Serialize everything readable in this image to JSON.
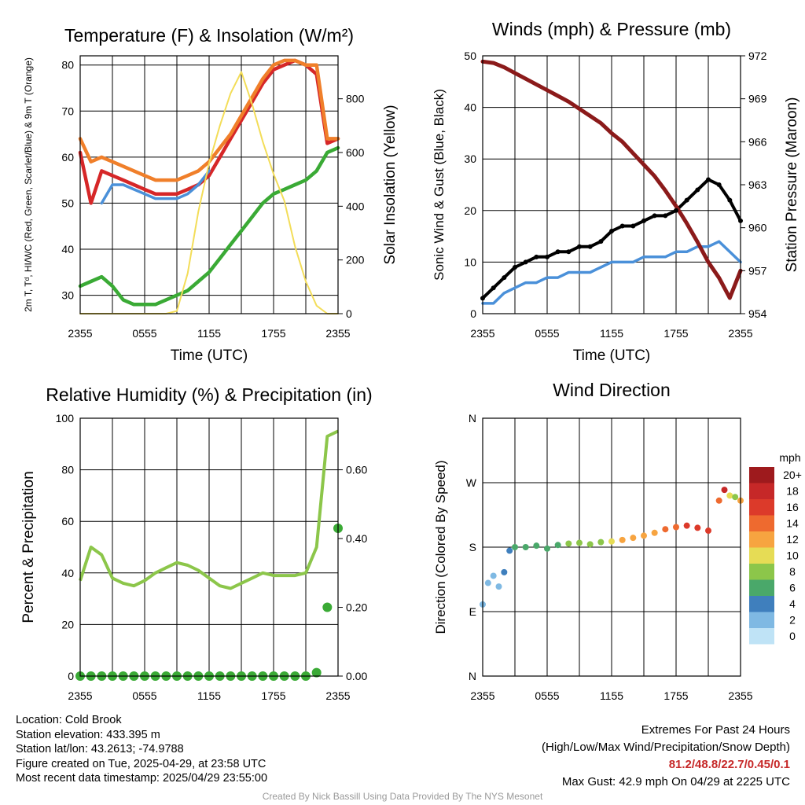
{
  "charts": {
    "temp": {
      "title": "Temperature (F) & Insolation (W/m²)",
      "ylabel_left": "2m T, Tᵈ, HI/WC (Red, Green, Scarlet/Blue) & 9m T (Orange)",
      "ylabel_right": "Solar Insolation (Yellow)",
      "xlabel": "Time (UTC)",
      "y_ticks": [
        "30",
        "40",
        "50",
        "60",
        "70",
        "80"
      ],
      "y2_ticks": [
        "0",
        "200",
        "400",
        "600",
        "800"
      ],
      "x_ticks": [
        "2355",
        "0555",
        "1155",
        "1755",
        "2355"
      ]
    },
    "wind": {
      "title": "Winds (mph) & Pressure (mb)",
      "ylabel_left": "Sonic Wind & Gust (Blue, Black)",
      "ylabel_right": "Station Pressure (Maroon)",
      "xlabel": "Time (UTC)",
      "y_ticks": [
        "0",
        "10",
        "20",
        "30",
        "40",
        "50"
      ],
      "y2_ticks": [
        "954",
        "957",
        "960",
        "963",
        "966",
        "969",
        "972"
      ],
      "x_ticks": [
        "2355",
        "0555",
        "1155",
        "1755",
        "2355"
      ]
    },
    "rh": {
      "title": "Relative Humidity (%) & Precipitation (in)",
      "ylabel_left": "Percent & Precipitation",
      "y_ticks": [
        "0",
        "20",
        "40",
        "60",
        "80",
        "100"
      ],
      "y2_ticks": [
        "0.00",
        "0.20",
        "0.40",
        "0.60"
      ],
      "x_ticks": [
        "2355",
        "0555",
        "1155",
        "1755",
        "2355"
      ]
    },
    "dir": {
      "title": "Wind Direction",
      "ylabel_left": "Direction (Colored By Speed)",
      "y_ticks": [
        "N",
        "E",
        "S",
        "W",
        "N"
      ],
      "x_ticks": [
        "2355",
        "0555",
        "1155",
        "1755",
        "2355"
      ],
      "legend_title": "mph",
      "legend_labels": [
        "20+",
        "18",
        "16",
        "14",
        "12",
        "10",
        "8",
        "6",
        "4",
        "2",
        "0"
      ],
      "legend_colors": [
        "#9e1a1d",
        "#c62828",
        "#dc3a2a",
        "#ee6a2f",
        "#f7a440",
        "#e6dc55",
        "#8cc64a",
        "#4aa86a",
        "#3f7fbd",
        "#7fb9e3",
        "#bfe3f6"
      ]
    }
  },
  "chart_data": [
    {
      "type": "line",
      "title": "Temperature (F) & Insolation (W/m²)",
      "xlabel": "Time (UTC)",
      "ylabel": "2m T, Tᵈ, HI/WC (Red, Green, Scarlet/Blue) & 9m T (Orange)",
      "y2label": "Solar Insolation (Yellow)",
      "x": [
        0,
        1,
        2,
        3,
        4,
        5,
        6,
        7,
        8,
        9,
        10,
        11,
        12,
        13,
        14,
        15,
        16,
        17,
        18,
        19,
        20,
        21,
        22,
        23,
        24
      ],
      "x_tick_labels": [
        "2355",
        "0555",
        "1155",
        "1755",
        "2355"
      ],
      "ylim": [
        26,
        82
      ],
      "y2lim": [
        0,
        960
      ],
      "series": [
        {
          "color": "#d62728",
          "axis": "left",
          "values": [
            61,
            50,
            57,
            56,
            55,
            54,
            53,
            52,
            52,
            52,
            53,
            54,
            56,
            60,
            64,
            68,
            72,
            76,
            79,
            80,
            81,
            80,
            78,
            63,
            64
          ]
        },
        {
          "color": "#4a90d9",
          "axis": "left",
          "values": [
            null,
            null,
            50,
            54,
            54,
            53,
            52,
            51,
            51,
            51,
            52,
            54,
            57,
            null,
            null,
            null,
            null,
            null,
            null,
            null,
            null,
            null,
            null,
            null,
            null
          ]
        },
        {
          "color": "#f07f2a",
          "axis": "left",
          "values": [
            64,
            59,
            60,
            59,
            58,
            57,
            56,
            55,
            55,
            55,
            56,
            57,
            59,
            62,
            65,
            69,
            73,
            77,
            80,
            81,
            81,
            80,
            80,
            64,
            64
          ]
        },
        {
          "color": "#3aaa35",
          "axis": "left",
          "values": [
            32,
            33,
            34,
            32,
            29,
            28,
            28,
            28,
            29,
            30,
            31,
            33,
            35,
            38,
            41,
            44,
            47,
            50,
            52,
            53,
            54,
            55,
            57,
            61,
            62
          ]
        },
        {
          "color": "#f3dd59",
          "axis": "right",
          "values": [
            0,
            0,
            0,
            0,
            0,
            0,
            0,
            0,
            0,
            10,
            150,
            380,
            560,
            700,
            820,
            900,
            780,
            640,
            520,
            420,
            250,
            120,
            30,
            0,
            0
          ]
        }
      ]
    },
    {
      "type": "line",
      "title": "Winds (mph) & Pressure (mb)",
      "xlabel": "Time (UTC)",
      "ylabel": "Sonic Wind & Gust (Blue, Black)",
      "y2label": "Station Pressure (Maroon)",
      "x": [
        0,
        1,
        2,
        3,
        4,
        5,
        6,
        7,
        8,
        9,
        10,
        11,
        12,
        13,
        14,
        15,
        16,
        17,
        18,
        19,
        20,
        21,
        22,
        23,
        24
      ],
      "x_tick_labels": [
        "2355",
        "0555",
        "1155",
        "1755",
        "2355"
      ],
      "ylim": [
        0,
        50
      ],
      "y2lim": [
        954,
        972
      ],
      "series": [
        {
          "color": "#4a90d9",
          "axis": "left",
          "values": [
            2,
            2,
            4,
            5,
            6,
            6,
            7,
            7,
            8,
            8,
            8,
            9,
            10,
            10,
            10,
            11,
            11,
            11,
            12,
            12,
            13,
            13,
            14,
            12,
            10
          ]
        },
        {
          "color": "#000000",
          "axis": "left",
          "values": [
            3,
            5,
            7,
            9,
            10,
            11,
            11,
            12,
            12,
            13,
            13,
            14,
            16,
            17,
            17,
            18,
            19,
            19,
            20,
            22,
            24,
            26,
            25,
            22,
            18
          ]
        },
        {
          "color": "#8b1a1a",
          "axis": "right",
          "values": [
            971.6,
            971.5,
            971.2,
            970.8,
            970.4,
            970.0,
            969.6,
            969.2,
            968.8,
            968.3,
            967.8,
            967.3,
            966.6,
            966.0,
            965.2,
            964.4,
            963.6,
            962.6,
            961.5,
            960.3,
            959.0,
            957.6,
            956.5,
            955.1,
            957.0
          ]
        }
      ]
    },
    {
      "type": "line",
      "title": "Relative Humidity (%) & Precipitation (in)",
      "ylabel": "Percent & Precipitation",
      "x": [
        0,
        1,
        2,
        3,
        4,
        5,
        6,
        7,
        8,
        9,
        10,
        11,
        12,
        13,
        14,
        15,
        16,
        17,
        18,
        19,
        20,
        21,
        22,
        23,
        24
      ],
      "x_tick_labels": [
        "2355",
        "0555",
        "1155",
        "1755",
        "2355"
      ],
      "ylim": [
        0,
        100
      ],
      "y2lim": [
        0,
        0.75
      ],
      "series": [
        {
          "color": "#8cc64a",
          "axis": "left",
          "values": [
            37,
            50,
            47,
            38,
            36,
            35,
            37,
            40,
            42,
            44,
            43,
            41,
            38,
            35,
            34,
            36,
            38,
            40,
            39,
            39,
            39,
            40,
            50,
            93,
            95
          ]
        },
        {
          "color": "#3aaa35",
          "axis": "right",
          "values": [
            0,
            0,
            0,
            0,
            0,
            0,
            0,
            0,
            0,
            0,
            0,
            0,
            0,
            0,
            0,
            0,
            0,
            0,
            0,
            0,
            0,
            0,
            0.01,
            0.2,
            0.43
          ]
        }
      ]
    },
    {
      "type": "scatter",
      "title": "Wind Direction",
      "ylabel": "Direction (Colored By Speed)",
      "x_tick_labels": [
        "2355",
        "0555",
        "1155",
        "1755",
        "2355"
      ],
      "y_tick_labels": [
        "N",
        "E",
        "S",
        "W",
        "N"
      ],
      "ylim": [
        0,
        360
      ],
      "points": [
        {
          "x": 0,
          "y": 100,
          "speed": 2
        },
        {
          "x": 0.5,
          "y": 130,
          "speed": 2
        },
        {
          "x": 1,
          "y": 140,
          "speed": 2
        },
        {
          "x": 1.5,
          "y": 125,
          "speed": 2
        },
        {
          "x": 2,
          "y": 145,
          "speed": 4
        },
        {
          "x": 2.5,
          "y": 175,
          "speed": 4
        },
        {
          "x": 3,
          "y": 180,
          "speed": 6
        },
        {
          "x": 4,
          "y": 180,
          "speed": 6
        },
        {
          "x": 5,
          "y": 182,
          "speed": 6
        },
        {
          "x": 6,
          "y": 178,
          "speed": 6
        },
        {
          "x": 7,
          "y": 183,
          "speed": 6
        },
        {
          "x": 8,
          "y": 185,
          "speed": 8
        },
        {
          "x": 9,
          "y": 186,
          "speed": 8
        },
        {
          "x": 10,
          "y": 184,
          "speed": 8
        },
        {
          "x": 11,
          "y": 187,
          "speed": 8
        },
        {
          "x": 12,
          "y": 188,
          "speed": 10
        },
        {
          "x": 13,
          "y": 190,
          "speed": 12
        },
        {
          "x": 14,
          "y": 193,
          "speed": 12
        },
        {
          "x": 15,
          "y": 196,
          "speed": 12
        },
        {
          "x": 16,
          "y": 200,
          "speed": 12
        },
        {
          "x": 17,
          "y": 205,
          "speed": 14
        },
        {
          "x": 18,
          "y": 208,
          "speed": 14
        },
        {
          "x": 19,
          "y": 210,
          "speed": 16
        },
        {
          "x": 20,
          "y": 207,
          "speed": 16
        },
        {
          "x": 21,
          "y": 203,
          "speed": 16
        },
        {
          "x": 22,
          "y": 245,
          "speed": 14
        },
        {
          "x": 22.5,
          "y": 260,
          "speed": 18
        },
        {
          "x": 23,
          "y": 252,
          "speed": 10
        },
        {
          "x": 23.5,
          "y": 250,
          "speed": 8
        },
        {
          "x": 24,
          "y": 245,
          "speed": 12
        }
      ]
    }
  ],
  "footer": {
    "location": "Location: Cold Brook",
    "elevation": "Station elevation: 433.395 m",
    "latlon": "Station lat/lon: 43.2613; -74.9788",
    "created": "Figure created on Tue, 2025-04-29, at 23:58 UTC",
    "recent": "Most recent data timestamp: 2025/04/29 23:55:00",
    "extremes_title": "Extremes For Past 24 Hours",
    "extremes_legend": "(High/Low/Max Wind/Precipitation/Snow Depth)",
    "extremes_values": "81.2/48.8/22.7/0.45/0.1",
    "max_gust": "Max Gust: 42.9 mph On 04/29 at 2225 UTC",
    "credit": "Created By Nick Bassill Using Data Provided By The NYS Mesonet"
  }
}
